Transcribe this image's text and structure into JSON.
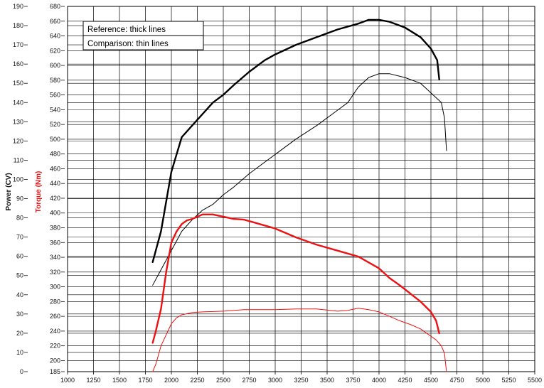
{
  "chart_data": {
    "type": "line",
    "xlabel": "",
    "ylabel_left": "Power (CV)",
    "ylabel_right": "Torque (Nm)",
    "xlim": [
      1000,
      5500
    ],
    "power_ylim": [
      0,
      190
    ],
    "torque_ylim": [
      185,
      680
    ],
    "x_ticks": [
      1000,
      1250,
      1500,
      1750,
      2000,
      2250,
      2500,
      2750,
      3000,
      3250,
      3500,
      3750,
      4000,
      4250,
      4500,
      4750,
      5000,
      5250,
      5500
    ],
    "power_ticks": [
      0,
      10,
      20,
      30,
      40,
      50,
      60,
      70,
      80,
      90,
      100,
      110,
      120,
      130,
      140,
      150,
      160,
      170,
      180,
      190
    ],
    "torque_ticks": [
      185,
      200,
      220,
      240,
      260,
      280,
      300,
      320,
      340,
      360,
      380,
      400,
      420,
      440,
      460,
      480,
      500,
      520,
      540,
      560,
      580,
      600,
      620,
      640,
      660,
      680
    ],
    "grid": true,
    "legend": {
      "placement": "top-left",
      "entries": [
        "Reference: thick lines",
        "Comparison: thin lines"
      ]
    },
    "colors": {
      "power": "#000000",
      "torque": "#ee1111",
      "grid": "#000000"
    },
    "series": [
      {
        "quantity": "power",
        "style": "thick",
        "axis": "power",
        "x": [
          1820,
          1900,
          2000,
          2050,
          2100,
          2200,
          2300,
          2400,
          2500,
          2600,
          2750,
          2900,
          3000,
          3200,
          3400,
          3600,
          3800,
          3900,
          4000,
          4100,
          4250,
          4400,
          4500,
          4560,
          4580
        ],
        "y": [
          57,
          73,
          104,
          113,
          122,
          128,
          134,
          140,
          144,
          149,
          156,
          162,
          165,
          170,
          174,
          178,
          181,
          183,
          183,
          182,
          179,
          174,
          168,
          162,
          152
        ]
      },
      {
        "quantity": "power",
        "style": "thin",
        "axis": "power",
        "x": [
          1820,
          1900,
          2000,
          2100,
          2200,
          2300,
          2400,
          2500,
          2600,
          2750,
          2900,
          3000,
          3200,
          3400,
          3600,
          3700,
          3800,
          3900,
          4000,
          4100,
          4250,
          4400,
          4500,
          4600,
          4630,
          4650
        ],
        "y": [
          45,
          53,
          63,
          73,
          79,
          84,
          87,
          92,
          96,
          103,
          109,
          113,
          121,
          128,
          136,
          140,
          148,
          153,
          155,
          155,
          153,
          150,
          145,
          140,
          132,
          115
        ]
      },
      {
        "quantity": "torque",
        "style": "thick",
        "axis": "torque",
        "x": [
          1820,
          1850,
          1900,
          1950,
          2000,
          2050,
          2100,
          2150,
          2200,
          2300,
          2400,
          2500,
          2600,
          2700,
          2800,
          3000,
          3200,
          3400,
          3600,
          3800,
          4000,
          4100,
          4200,
          4300,
          4400,
          4500,
          4550,
          4580
        ],
        "y": [
          224,
          240,
          270,
          320,
          360,
          375,
          385,
          390,
          392,
          398,
          398,
          395,
          392,
          391,
          387,
          379,
          367,
          357,
          349,
          341,
          325,
          312,
          302,
          291,
          280,
          266,
          254,
          237
        ]
      },
      {
        "quantity": "torque",
        "style": "thin",
        "axis": "torque",
        "x": [
          1820,
          1850,
          1900,
          2000,
          2050,
          2100,
          2200,
          2300,
          2500,
          2700,
          3000,
          3200,
          3400,
          3600,
          3700,
          3800,
          3900,
          4000,
          4100,
          4200,
          4300,
          4400,
          4500,
          4550,
          4600,
          4630,
          4650
        ],
        "y": [
          185,
          195,
          220,
          250,
          258,
          262,
          265,
          266,
          267,
          269,
          269,
          270,
          270,
          267,
          268,
          271,
          269,
          266,
          260,
          254,
          249,
          243,
          233,
          228,
          220,
          210,
          185
        ]
      }
    ]
  }
}
